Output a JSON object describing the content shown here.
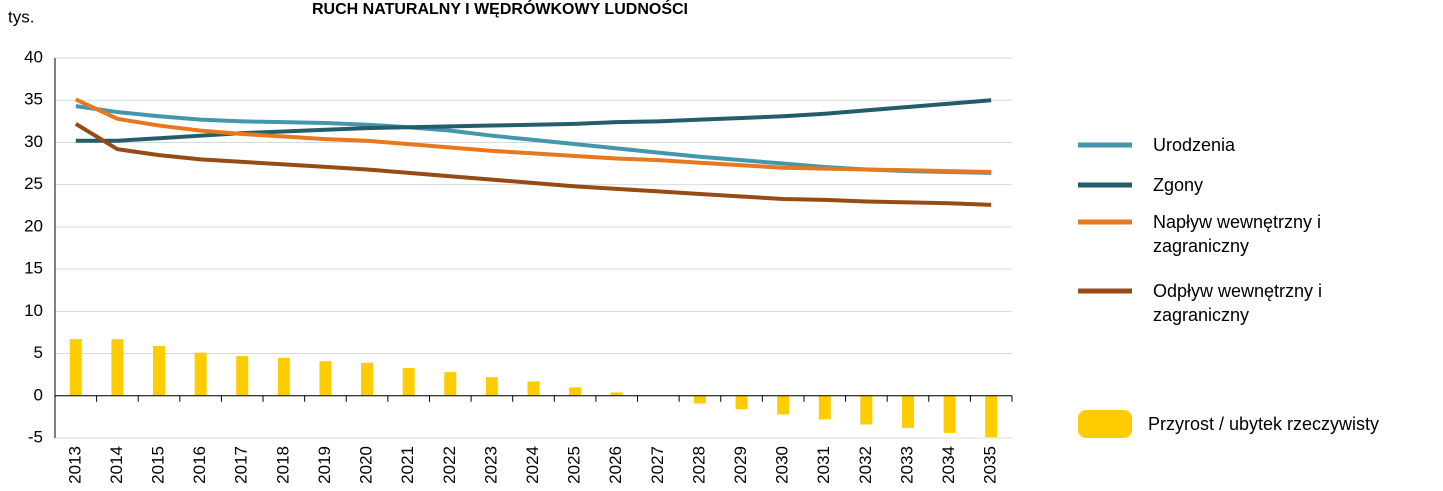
{
  "chart_data": {
    "type": "line",
    "title": "RUCH NATURALNY I WĘDRÓWKOWY LUDNOŚCI",
    "y_label": "tys.",
    "categories": [
      "2013",
      "2014",
      "2015",
      "2016",
      "2017",
      "2018",
      "2019",
      "2020",
      "2021",
      "2022",
      "2023",
      "2024",
      "2025",
      "2026",
      "2027",
      "2028",
      "2029",
      "2030",
      "2031",
      "2032",
      "2033",
      "2034",
      "2035"
    ],
    "series": [
      {
        "name": "Urodzenia",
        "color": "#4397ad",
        "values": [
          34.3,
          33.6,
          33.1,
          32.7,
          32.5,
          32.4,
          32.3,
          32.1,
          31.8,
          31.4,
          30.8,
          30.3,
          29.8,
          29.3,
          28.8,
          28.3,
          27.9,
          27.5,
          27.1,
          26.8,
          26.6,
          26.5,
          26.4
        ]
      },
      {
        "name": "Zgony",
        "color": "#245d6a",
        "values": [
          30.2,
          30.2,
          30.5,
          30.8,
          31.1,
          31.3,
          31.5,
          31.7,
          31.8,
          31.9,
          32.0,
          32.1,
          32.2,
          32.4,
          32.5,
          32.7,
          32.9,
          33.1,
          33.4,
          33.8,
          34.2,
          34.6,
          35.0
        ]
      },
      {
        "name": "Napływ wewnętrzny i zagraniczny",
        "color": "#e8781e",
        "values": [
          35.1,
          32.8,
          32.0,
          31.4,
          31.0,
          30.7,
          30.4,
          30.2,
          29.8,
          29.4,
          29.0,
          28.7,
          28.4,
          28.1,
          27.9,
          27.6,
          27.3,
          27.0,
          26.9,
          26.8,
          26.7,
          26.6,
          26.5
        ]
      },
      {
        "name": "Odpływ wewnętrzny i zagraniczny",
        "color": "#964a14",
        "values": [
          32.2,
          29.2,
          28.5,
          28.0,
          27.7,
          27.4,
          27.1,
          26.8,
          26.4,
          26.0,
          25.6,
          25.2,
          24.8,
          24.5,
          24.2,
          23.9,
          23.6,
          23.3,
          23.2,
          23.0,
          22.9,
          22.8,
          22.6
        ]
      },
      {
        "name": "Przyrost / ubytek rzeczywisty",
        "color": "#ffcc00",
        "type": "bar",
        "values": [
          6.7,
          6.7,
          5.9,
          5.1,
          4.7,
          4.5,
          4.1,
          3.9,
          3.3,
          2.8,
          2.2,
          1.7,
          1.0,
          0.4,
          0,
          -0.9,
          -1.6,
          -2.2,
          -2.8,
          -3.4,
          -3.8,
          -4.4,
          -4.9
        ]
      }
    ],
    "ylim": [
      -5,
      40
    ],
    "yticks": [
      -5,
      0,
      5,
      10,
      15,
      20,
      25,
      30,
      35,
      40
    ],
    "grid": true
  }
}
